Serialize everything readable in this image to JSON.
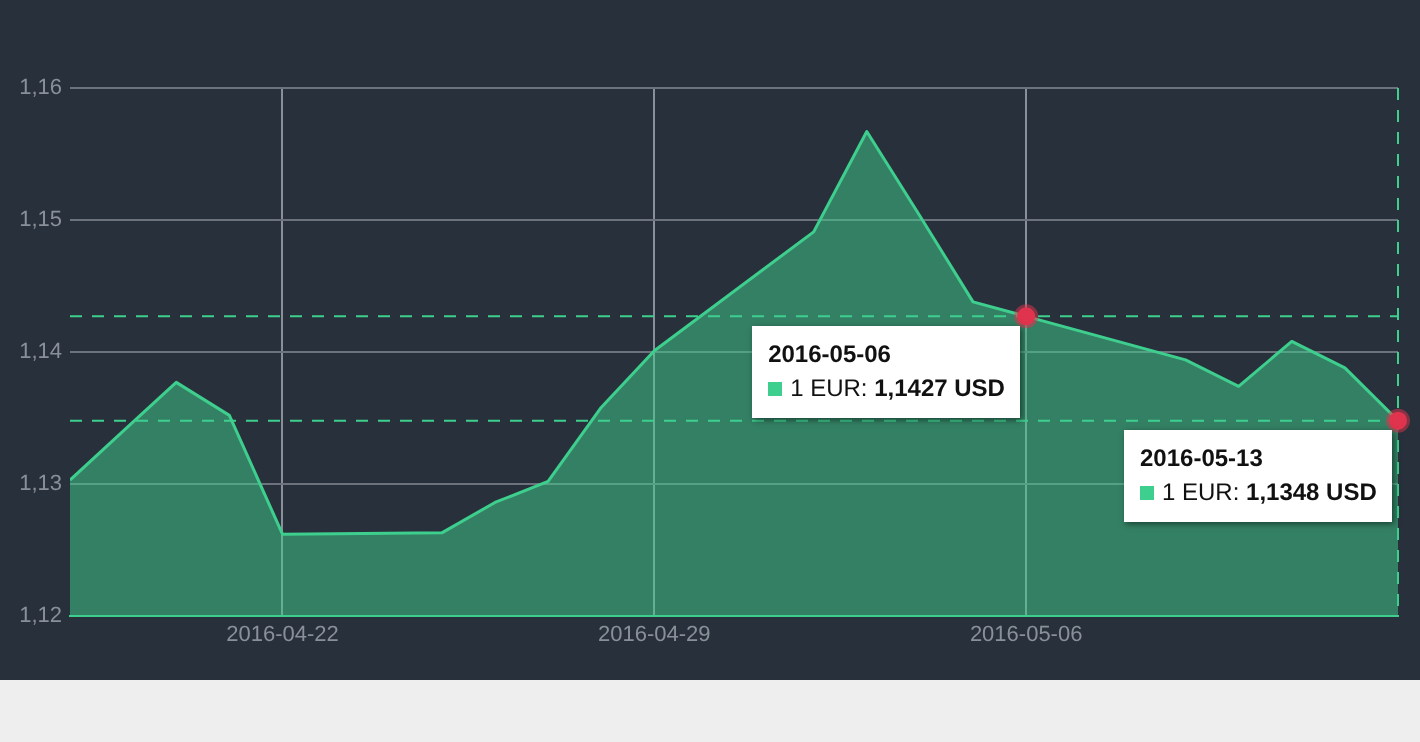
{
  "chart_data": {
    "type": "area",
    "x": [
      "2016-04-18",
      "2016-04-19",
      "2016-04-20",
      "2016-04-21",
      "2016-04-22",
      "2016-04-25",
      "2016-04-26",
      "2016-04-27",
      "2016-04-28",
      "2016-04-29",
      "2016-05-02",
      "2016-05-03",
      "2016-05-04",
      "2016-05-05",
      "2016-05-06",
      "2016-05-09",
      "2016-05-10",
      "2016-05-11",
      "2016-05-12",
      "2016-05-13"
    ],
    "series": [
      {
        "color": "#3ecf8e",
        "values": [
          1.1303,
          1.134,
          1.1377,
          1.1352,
          1.1262,
          1.1263,
          1.1286,
          1.1302,
          1.1358,
          1.1401,
          1.1491,
          1.1567,
          1.1503,
          1.1438,
          1.1427,
          1.1394,
          1.1374,
          1.1408,
          1.1388,
          1.1348
        ]
      }
    ],
    "xlim": [
      "2016-04-18",
      "2016-05-13"
    ],
    "xticks": [
      "2016-04-22",
      "2016-04-29",
      "2016-05-06"
    ],
    "ylim": [
      1.12,
      1.16
    ],
    "yticks": [
      {
        "value": 1.12,
        "label": "1,12"
      },
      {
        "value": 1.13,
        "label": "1,13"
      },
      {
        "value": 1.14,
        "label": "1,14"
      },
      {
        "value": 1.15,
        "label": "1,15"
      },
      {
        "value": 1.16,
        "label": "1,16"
      }
    ],
    "grid": true,
    "legend": false,
    "marker": "none",
    "line_style": "solid",
    "ref_lines": [
      {
        "axis": "y",
        "value": 1.1427,
        "color": "#3ecf8e",
        "line_style": "dashed"
      },
      {
        "axis": "y",
        "value": 1.1348,
        "color": "#3ecf8e",
        "line_style": "dashed"
      },
      {
        "axis": "x",
        "value": "2016-05-13",
        "color": "#3ecf8e",
        "line_style": "dashed"
      }
    ],
    "annotations": [
      {
        "text": "2016-05-06\n1 EUR: 1,1427 USD",
        "x": "2016-05-06",
        "y": 1.1427
      },
      {
        "text": "2016-05-13\n1 EUR: 1,1348 USD",
        "x": "2016-05-13",
        "y": 1.1348
      }
    ]
  }
}
